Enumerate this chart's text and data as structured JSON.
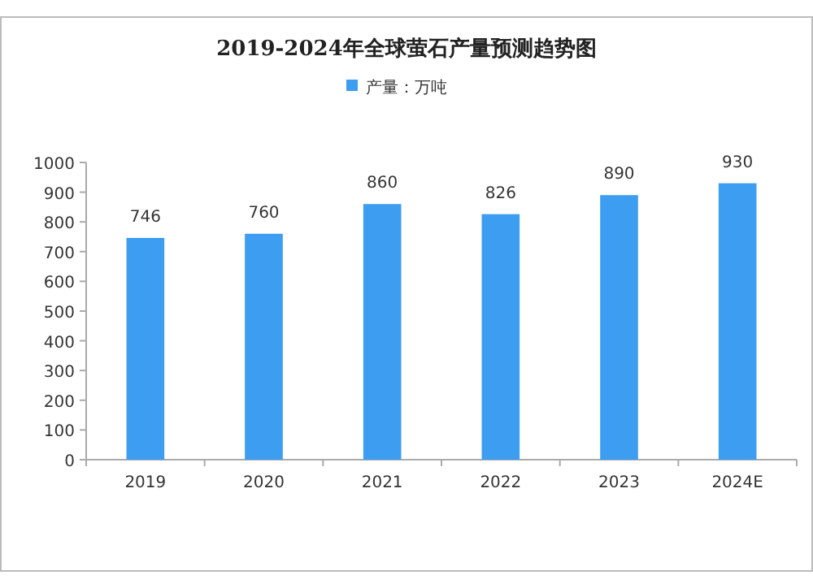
{
  "chart_data": {
    "type": "bar",
    "title": "2019-2024年全球萤石产量预测趋势图",
    "categories": [
      "2019",
      "2020",
      "2021",
      "2022",
      "2023",
      "2024E"
    ],
    "series": [
      {
        "name": "产量：万吨",
        "color": "#3d9df0",
        "values": [
          746,
          760,
          860,
          826,
          890,
          930
        ]
      }
    ],
    "ylim": [
      0,
      1000
    ],
    "yticks": [
      0,
      100,
      200,
      300,
      400,
      500,
      600,
      700,
      800,
      900,
      1000
    ],
    "data_labels": true,
    "legend": "top",
    "grid": false
  }
}
